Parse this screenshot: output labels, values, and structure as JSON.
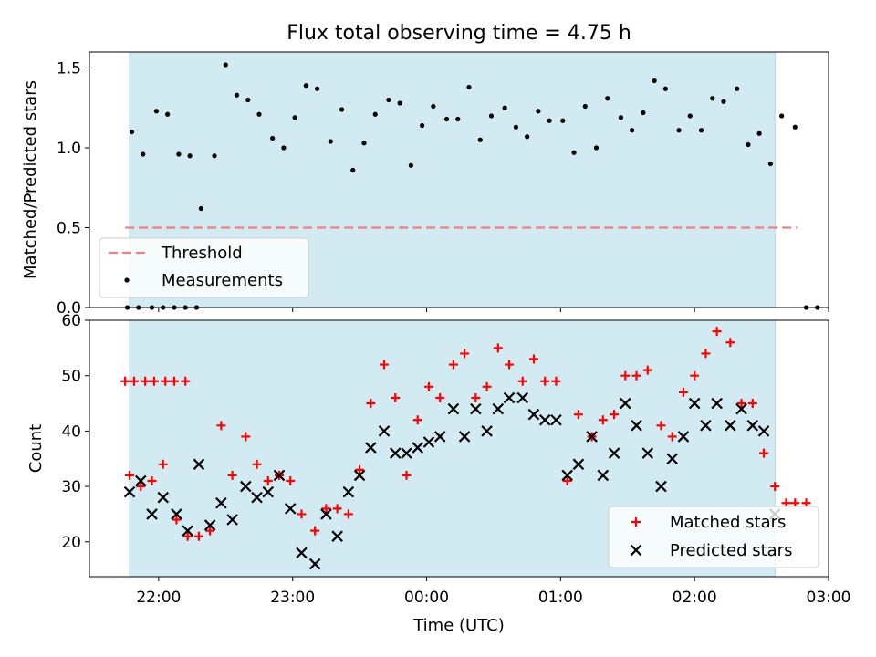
{
  "chart_data": [
    {
      "type": "scatter",
      "title": "Flux total observing time = 4.75 h",
      "xlabel": "",
      "ylabel": "Matched/Predicted stars",
      "xlim": [
        "21:29",
        "03:00"
      ],
      "ylim": [
        0,
        1.6
      ],
      "y_ticks": [
        0.0,
        0.5,
        1.0,
        1.5
      ],
      "y_tick_labels": [
        "0.0",
        "0.5",
        "1.0",
        "1.5"
      ],
      "shaded_interval": [
        "21:47",
        "02:36"
      ],
      "shade_color": "#add8e6",
      "threshold": {
        "name": "Threshold",
        "value": 0.5,
        "x": [
          "21:45",
          "02:46"
        ],
        "color": "#f08080",
        "style": "dashed"
      },
      "series": [
        {
          "name": "Measurements",
          "marker": "dot",
          "color": "#000000",
          "points": [
            [
              "21:46",
              0
            ],
            [
              "21:51",
              0
            ],
            [
              "21:57",
              0
            ],
            [
              "22:02",
              0
            ],
            [
              "22:07",
              0
            ],
            [
              "22:12",
              0
            ],
            [
              "22:17",
              0
            ],
            [
              "21:48",
              1.1
            ],
            [
              "21:53",
              0.96
            ],
            [
              "21:59",
              1.23
            ],
            [
              "22:04",
              1.21
            ],
            [
              "22:09",
              0.96
            ],
            [
              "22:14",
              0.95
            ],
            [
              "22:19",
              0.62
            ],
            [
              "22:25",
              0.95
            ],
            [
              "22:30",
              1.52
            ],
            [
              "22:35",
              1.33
            ],
            [
              "22:40",
              1.3
            ],
            [
              "22:45",
              1.21
            ],
            [
              "22:51",
              1.06
            ],
            [
              "22:56",
              1.0
            ],
            [
              "23:01",
              1.19
            ],
            [
              "23:06",
              1.39
            ],
            [
              "23:11",
              1.37
            ],
            [
              "23:17",
              1.04
            ],
            [
              "23:22",
              1.24
            ],
            [
              "23:27",
              0.86
            ],
            [
              "23:32",
              1.03
            ],
            [
              "23:37",
              1.21
            ],
            [
              "23:43",
              1.3
            ],
            [
              "23:48",
              1.28
            ],
            [
              "23:53",
              0.89
            ],
            [
              "23:58",
              1.14
            ],
            [
              "00:03",
              1.26
            ],
            [
              "00:09",
              1.18
            ],
            [
              "00:14",
              1.18
            ],
            [
              "00:19",
              1.38
            ],
            [
              "00:24",
              1.05
            ],
            [
              "00:29",
              1.2
            ],
            [
              "00:35",
              1.25
            ],
            [
              "00:40",
              1.13
            ],
            [
              "00:45",
              1.07
            ],
            [
              "00:50",
              1.23
            ],
            [
              "00:55",
              1.17
            ],
            [
              "01:01",
              1.17
            ],
            [
              "01:06",
              0.97
            ],
            [
              "01:11",
              1.26
            ],
            [
              "01:16",
              1.0
            ],
            [
              "01:21",
              1.31
            ],
            [
              "01:27",
              1.19
            ],
            [
              "01:32",
              1.11
            ],
            [
              "01:37",
              1.22
            ],
            [
              "01:42",
              1.42
            ],
            [
              "01:47",
              1.37
            ],
            [
              "01:53",
              1.11
            ],
            [
              "01:58",
              1.2
            ],
            [
              "02:03",
              1.11
            ],
            [
              "02:08",
              1.31
            ],
            [
              "02:13",
              1.29
            ],
            [
              "02:19",
              1.37
            ],
            [
              "02:24",
              1.02
            ],
            [
              "02:29",
              1.09
            ],
            [
              "02:34",
              0.9
            ],
            [
              "02:39",
              1.2
            ],
            [
              "02:45",
              1.13
            ],
            [
              "02:50",
              0
            ],
            [
              "02:55",
              0
            ]
          ]
        }
      ],
      "legend": {
        "placement": "lower-left",
        "entries": [
          "Threshold",
          "Measurements"
        ]
      }
    },
    {
      "type": "scatter",
      "title": "",
      "xlabel": "Time (UTC)",
      "ylabel": "Count",
      "xlim": [
        "21:29",
        "03:00"
      ],
      "ylim": [
        13.7,
        60
      ],
      "x_ticks": [
        "22:00",
        "23:00",
        "00:00",
        "01:00",
        "02:00",
        "03:00"
      ],
      "y_ticks": [
        20,
        30,
        40,
        50,
        60
      ],
      "shaded_interval": [
        "21:47",
        "02:36"
      ],
      "shade_color": "#add8e6",
      "series": [
        {
          "name": "Matched stars",
          "marker": "plus",
          "color": "#ff0000",
          "points": [
            [
              "21:45",
              49
            ],
            [
              "21:49",
              49
            ],
            [
              "21:54",
              49
            ],
            [
              "21:58",
              49
            ],
            [
              "22:03",
              49
            ],
            [
              "22:07",
              49
            ],
            [
              "22:12",
              49
            ],
            [
              "21:47",
              32
            ],
            [
              "21:52",
              30
            ],
            [
              "21:57",
              31
            ],
            [
              "22:02",
              34
            ],
            [
              "22:08",
              24
            ],
            [
              "22:13",
              21
            ],
            [
              "22:18",
              21
            ],
            [
              "22:23",
              22
            ],
            [
              "22:28",
              41
            ],
            [
              "22:33",
              32
            ],
            [
              "22:39",
              39
            ],
            [
              "22:44",
              34
            ],
            [
              "22:49",
              31
            ],
            [
              "22:54",
              32
            ],
            [
              "22:59",
              31
            ],
            [
              "23:04",
              25
            ],
            [
              "23:10",
              22
            ],
            [
              "23:15",
              26
            ],
            [
              "23:20",
              26
            ],
            [
              "23:25",
              25
            ],
            [
              "23:30",
              33
            ],
            [
              "23:35",
              45
            ],
            [
              "23:41",
              52
            ],
            [
              "23:46",
              46
            ],
            [
              "23:51",
              32
            ],
            [
              "23:56",
              42
            ],
            [
              "00:01",
              48
            ],
            [
              "00:06",
              46
            ],
            [
              "00:12",
              52
            ],
            [
              "00:17",
              54
            ],
            [
              "00:22",
              46
            ],
            [
              "00:27",
              48
            ],
            [
              "00:32",
              55
            ],
            [
              "00:37",
              52
            ],
            [
              "00:43",
              49
            ],
            [
              "00:48",
              53
            ],
            [
              "00:53",
              49
            ],
            [
              "00:58",
              49
            ],
            [
              "01:03",
              31
            ],
            [
              "01:08",
              43
            ],
            [
              "01:14",
              39
            ],
            [
              "01:19",
              42
            ],
            [
              "01:24",
              43
            ],
            [
              "01:29",
              50
            ],
            [
              "01:34",
              50
            ],
            [
              "01:39",
              51
            ],
            [
              "01:45",
              41
            ],
            [
              "01:50",
              39
            ],
            [
              "01:55",
              47
            ],
            [
              "02:00",
              50
            ],
            [
              "02:05",
              54
            ],
            [
              "02:10",
              58
            ],
            [
              "02:16",
              56
            ],
            [
              "02:21",
              45
            ],
            [
              "02:26",
              45
            ],
            [
              "02:31",
              36
            ],
            [
              "02:36",
              30
            ],
            [
              "02:41",
              27
            ],
            [
              "02:45",
              27
            ],
            [
              "02:50",
              27
            ]
          ]
        },
        {
          "name": "Predicted stars",
          "marker": "x",
          "color": "#000000",
          "points": [
            [
              "21:47",
              29
            ],
            [
              "21:52",
              31
            ],
            [
              "21:57",
              25
            ],
            [
              "22:02",
              28
            ],
            [
              "22:08",
              25
            ],
            [
              "22:13",
              22
            ],
            [
              "22:18",
              34
            ],
            [
              "22:23",
              23
            ],
            [
              "22:28",
              27
            ],
            [
              "22:33",
              24
            ],
            [
              "22:39",
              30
            ],
            [
              "22:44",
              28
            ],
            [
              "22:49",
              29
            ],
            [
              "22:54",
              32
            ],
            [
              "22:59",
              26
            ],
            [
              "23:04",
              18
            ],
            [
              "23:10",
              16
            ],
            [
              "23:15",
              25
            ],
            [
              "23:20",
              21
            ],
            [
              "23:25",
              29
            ],
            [
              "23:30",
              32
            ],
            [
              "23:35",
              37
            ],
            [
              "23:41",
              40
            ],
            [
              "23:46",
              36
            ],
            [
              "23:51",
              36
            ],
            [
              "23:56",
              37
            ],
            [
              "00:01",
              38
            ],
            [
              "00:06",
              39
            ],
            [
              "00:12",
              44
            ],
            [
              "00:17",
              39
            ],
            [
              "00:22",
              44
            ],
            [
              "00:27",
              40
            ],
            [
              "00:32",
              44
            ],
            [
              "00:37",
              46
            ],
            [
              "00:43",
              46
            ],
            [
              "00:48",
              43
            ],
            [
              "00:53",
              42
            ],
            [
              "00:58",
              42
            ],
            [
              "01:03",
              32
            ],
            [
              "01:08",
              34
            ],
            [
              "01:14",
              39
            ],
            [
              "01:19",
              32
            ],
            [
              "01:24",
              36
            ],
            [
              "01:29",
              45
            ],
            [
              "01:34",
              41
            ],
            [
              "01:39",
              36
            ],
            [
              "01:45",
              30
            ],
            [
              "01:50",
              35
            ],
            [
              "01:55",
              39
            ],
            [
              "02:00",
              45
            ],
            [
              "02:05",
              41
            ],
            [
              "02:10",
              45
            ],
            [
              "02:16",
              41
            ],
            [
              "02:21",
              44
            ],
            [
              "02:26",
              41
            ],
            [
              "02:31",
              40
            ],
            [
              "02:36",
              25
            ]
          ]
        }
      ],
      "legend": {
        "placement": "lower-right",
        "entries": [
          "Matched stars",
          "Predicted stars"
        ]
      }
    }
  ]
}
